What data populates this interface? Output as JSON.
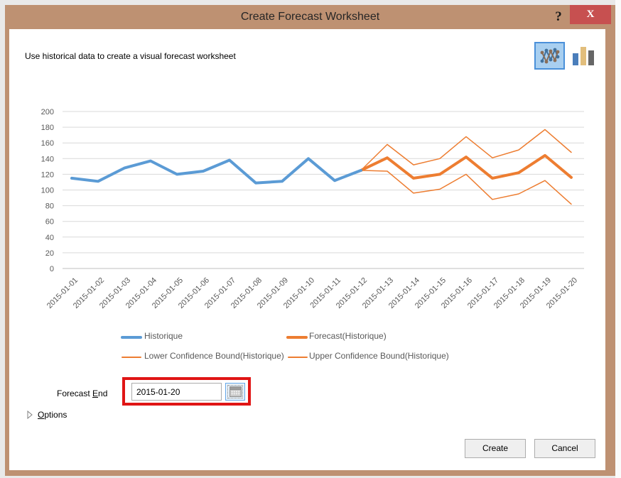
{
  "window": {
    "title": "Create Forecast Worksheet",
    "help_icon": "?",
    "close_icon": "X"
  },
  "header": {
    "subtitle": "Use historical data to create a visual forecast worksheet"
  },
  "chart_type_toggle": {
    "selected": "line-chart",
    "options": [
      "line-chart",
      "column-chart"
    ]
  },
  "chart_data": {
    "type": "line",
    "x_labels": [
      "2015-01-01",
      "2015-01-02",
      "2015-01-03",
      "2015-01-04",
      "2015-01-05",
      "2015-01-06",
      "2015-01-07",
      "2015-01-08",
      "2015-01-09",
      "2015-01-10",
      "2015-01-11",
      "2015-01-12",
      "2015-01-13",
      "2015-01-14",
      "2015-01-15",
      "2015-01-16",
      "2015-01-17",
      "2015-01-18",
      "2015-01-19",
      "2015-01-20"
    ],
    "ylim": [
      0,
      200
    ],
    "ytick_step": 20,
    "grid": true,
    "legend_position": "bottom",
    "series": [
      {
        "name": "Historique",
        "color": "#5B9BD5",
        "width": 4,
        "start_index": 0,
        "values": [
          115,
          111,
          128,
          137,
          120,
          124,
          138,
          109,
          111,
          140,
          112,
          125
        ]
      },
      {
        "name": "Forecast(Historique)",
        "color": "#ED7D31",
        "width": 4,
        "start_index": 11,
        "values": [
          125,
          141,
          115,
          120,
          142,
          115,
          122,
          144,
          116
        ]
      },
      {
        "name": "Lower Confidence Bound(Historique)",
        "color": "#ED7D31",
        "width": 1.5,
        "start_index": 11,
        "values": [
          125,
          124,
          96,
          101,
          120,
          88,
          95,
          112,
          82
        ]
      },
      {
        "name": "Upper Confidence Bound(Historique)",
        "color": "#ED7D31",
        "width": 1.5,
        "start_index": 11,
        "values": [
          125,
          158,
          132,
          140,
          168,
          141,
          151,
          177,
          148
        ]
      }
    ]
  },
  "forecast_end": {
    "label_pre": "Forecast ",
    "label_accel": "E",
    "label_post": "nd",
    "value": "2015-01-20"
  },
  "options_section": {
    "label_accel": "O",
    "label_rest": "ptions",
    "expanded": false
  },
  "footer": {
    "create_label": "Create",
    "cancel_label": "Cancel"
  },
  "colors": {
    "titlebar": "#BE9172",
    "close_button": "#C75050",
    "historical_series": "#5B9BD5",
    "forecast_series": "#ED7D31",
    "annotation_highlight": "#E01515",
    "selected_toggle_bg": "#A8CFF0",
    "selected_toggle_border": "#4A90D9"
  }
}
